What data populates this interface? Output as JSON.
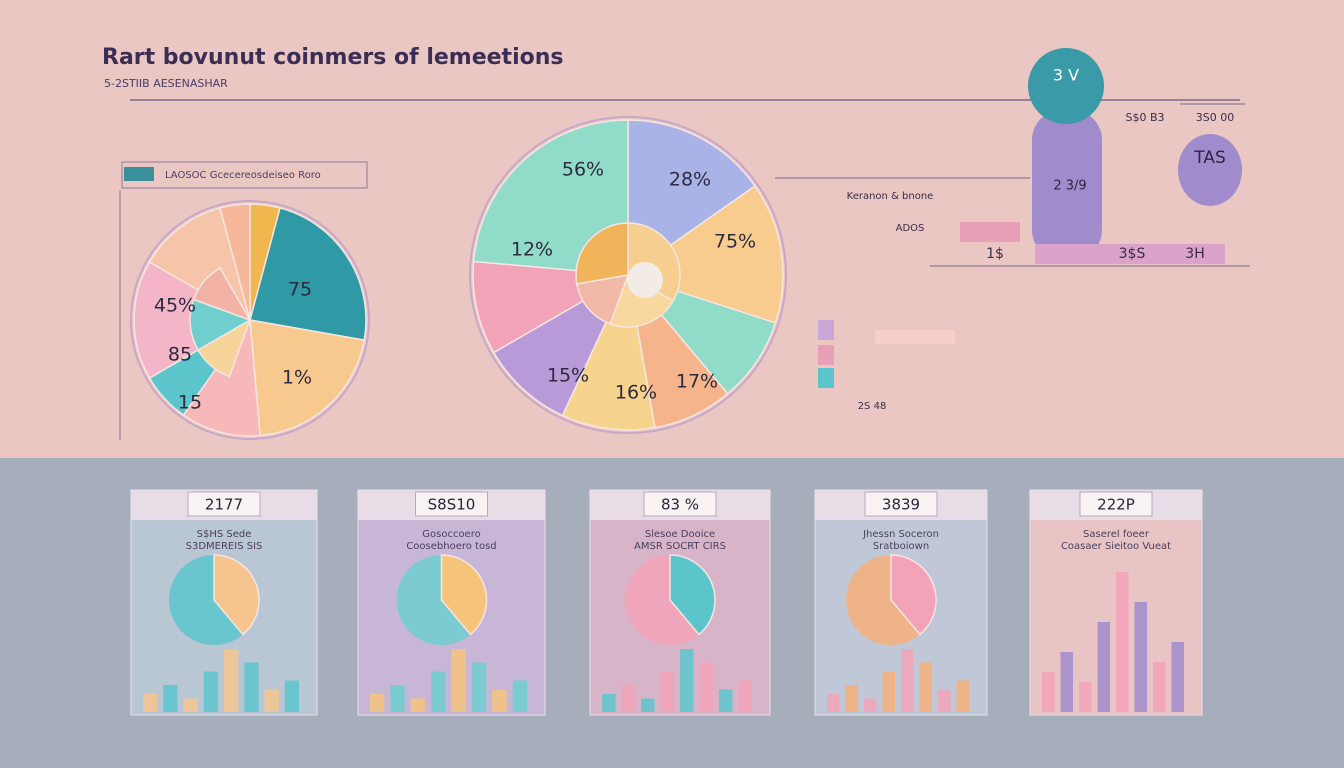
{
  "header": {
    "title": "Rart bovunut coinmers of lemeetions",
    "subtitle": "5-2STIIB AESENASHAR"
  },
  "left_chart": {
    "legend": "LAOSOC Gcecereosdeiseo Roro",
    "labels": [
      "45%",
      "75",
      "85",
      "1%",
      "15"
    ]
  },
  "center_chart": {
    "labels": [
      "56%",
      "28%",
      "12%",
      "75%",
      "15%",
      "16%",
      "17%"
    ]
  },
  "right_diagram": {
    "badges": [
      "3 V",
      "TAS",
      "2 3/9"
    ],
    "labels": [
      "Keranon & bnone",
      "ADOS",
      "1$",
      "3$S",
      "3H",
      "S$0 B3",
      "3S0 00",
      "2S 48"
    ]
  },
  "cards": [
    {
      "value": "2177",
      "title": "S$HS Sede",
      "subtitle": "S3DMEREIS SIS"
    },
    {
      "value": "S8S10",
      "title": "Gosoccoero",
      "subtitle": "Coosebhoero tosd"
    },
    {
      "value": "83 %",
      "title": "Slesoe Dooice",
      "subtitle": "AMSR SOCRT CIRS"
    },
    {
      "value": "3839",
      "title": "Jhessn Soceron",
      "subtitle": "Sratboiown"
    },
    {
      "value": "222P",
      "title": "Saserel foeer",
      "subtitle": "Coasaer Sieitoo Vueat"
    }
  ]
}
